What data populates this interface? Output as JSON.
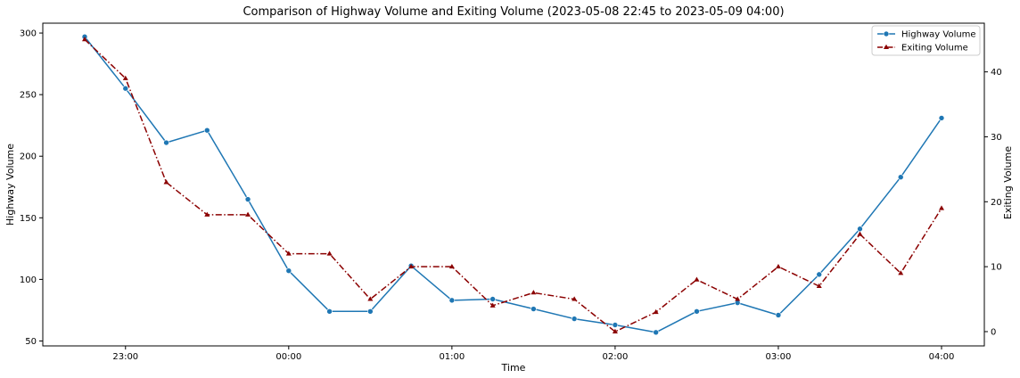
{
  "chart_data": {
    "type": "line",
    "title": "Comparison of Highway Volume and Exiting Volume (2023-05-08 22:45 to 2023-05-09 04:00)",
    "xlabel": "Time",
    "ylabel_left": "Highway Volume",
    "ylabel_right": "Exiting Volume",
    "x": [
      "22:45",
      "23:00",
      "23:15",
      "23:30",
      "23:45",
      "00:00",
      "00:15",
      "00:30",
      "00:45",
      "01:00",
      "01:15",
      "01:30",
      "01:45",
      "02:00",
      "02:15",
      "02:30",
      "02:45",
      "03:00",
      "03:15",
      "03:30",
      "03:45",
      "04:00"
    ],
    "x_ticks": [
      "23:00",
      "00:00",
      "01:00",
      "02:00",
      "03:00",
      "04:00"
    ],
    "y_left_ticks": [
      50,
      100,
      150,
      200,
      250,
      300
    ],
    "y_right_ticks": [
      0,
      10,
      20,
      30,
      40
    ],
    "y_left_lim": [
      46,
      308
    ],
    "y_right_lim": [
      -2.2,
      47.5
    ],
    "grid": false,
    "legend_position": "top-right",
    "series": [
      {
        "name": "Highway Volume",
        "axis": "left",
        "color": "#1f77b4",
        "linestyle": "solid",
        "marker": "circle",
        "values": [
          297,
          255,
          211,
          221,
          165,
          107,
          74,
          74,
          111,
          83,
          84,
          76,
          68,
          63,
          57,
          74,
          81,
          71,
          104,
          141,
          183,
          231
        ]
      },
      {
        "name": "Exiting Volume",
        "axis": "right",
        "color": "#8b0000",
        "linestyle": "dashdot",
        "marker": "triangle",
        "values": [
          45,
          39,
          23,
          18,
          18,
          12,
          12,
          5,
          10,
          10,
          4,
          6,
          5,
          0,
          3,
          8,
          5,
          10,
          7,
          15,
          9,
          19
        ]
      }
    ]
  }
}
